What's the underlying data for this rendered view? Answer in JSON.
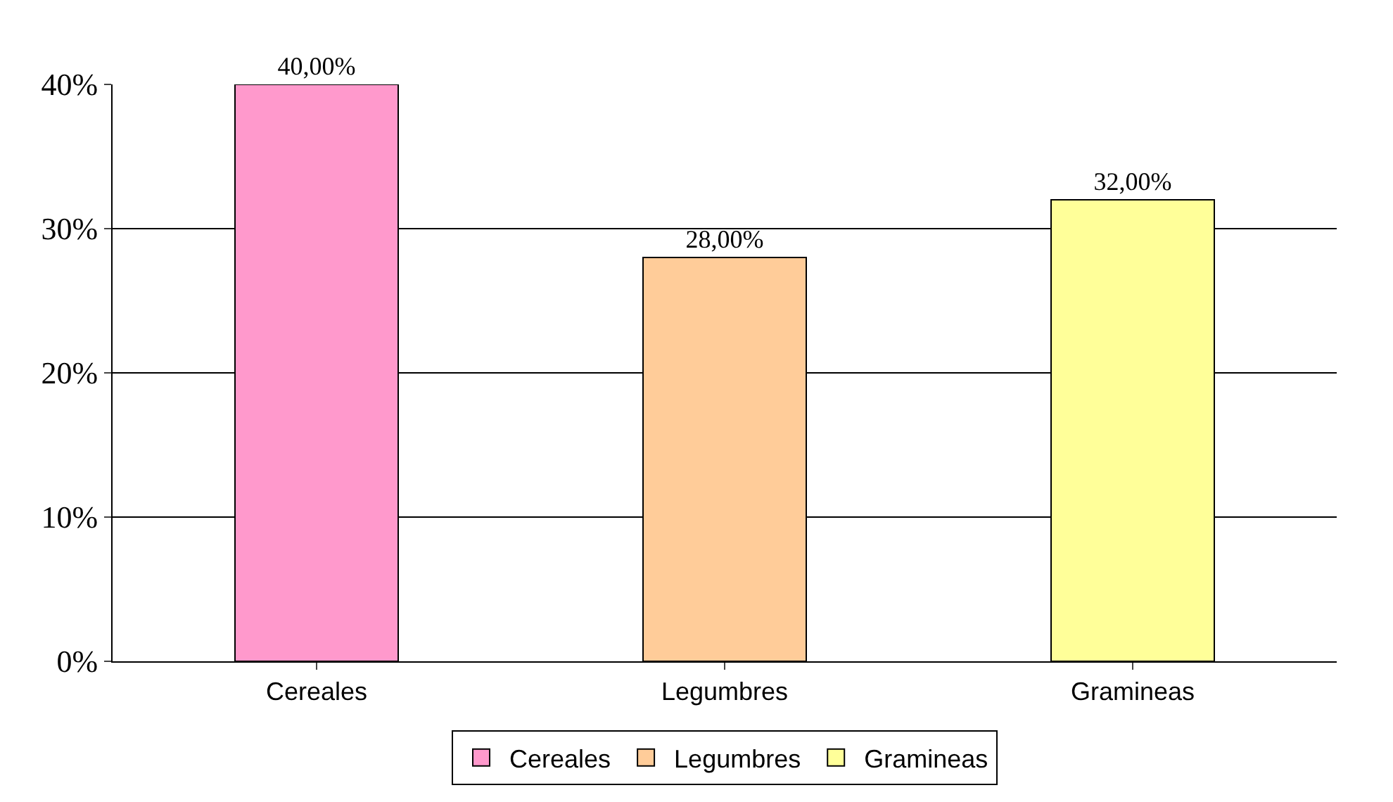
{
  "chart_data": {
    "type": "bar",
    "categories": [
      "Cereales",
      "Legumbres",
      "Gramineas"
    ],
    "series": [
      {
        "name": "Cereales",
        "color": "#ff99cc",
        "values": [
          40,
          null,
          null
        ],
        "value_labels": [
          "40,00%",
          null,
          null
        ]
      },
      {
        "name": "Legumbres",
        "color": "#ffcc99",
        "values": [
          null,
          28,
          null
        ],
        "value_labels": [
          null,
          "28,00%",
          null
        ]
      },
      {
        "name": "Gramineas",
        "color": "#ffff99",
        "values": [
          null,
          null,
          32
        ],
        "value_labels": [
          null,
          null,
          "32,00%"
        ]
      }
    ],
    "ylim": [
      0,
      40
    ],
    "yticks": [
      {
        "value": 0,
        "label": "0%"
      },
      {
        "value": 10,
        "label": "10%"
      },
      {
        "value": 20,
        "label": "20%"
      },
      {
        "value": 30,
        "label": "30%"
      },
      {
        "value": 40,
        "label": "40%"
      }
    ],
    "grid": "y",
    "legend": "bottom"
  }
}
